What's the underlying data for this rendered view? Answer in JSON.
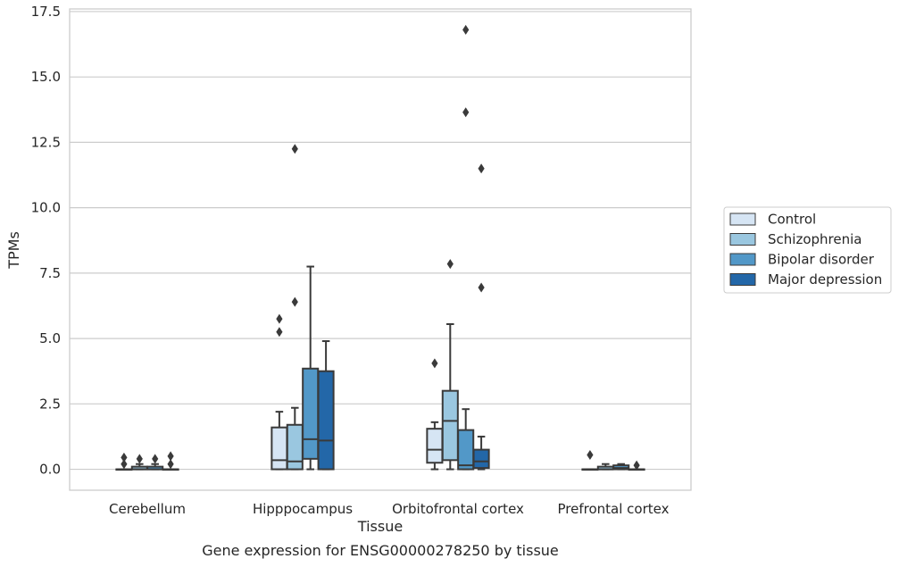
{
  "chart_data": {
    "type": "box",
    "title": "",
    "caption": "Gene expression for ENSG00000278250 by tissue",
    "xlabel": "Tissue",
    "ylabel": "TPMs",
    "ylim": [
      -0.8,
      17.6
    ],
    "yticks": [
      "0.0",
      "2.5",
      "5.0",
      "7.5",
      "10.0",
      "12.5",
      "15.0",
      "17.5"
    ],
    "grid": "horizontal",
    "legend_position": "right",
    "categories": [
      "Cerebellum",
      "Hipppocampus",
      "Orbitofrontal cortex",
      "Prefrontal cortex"
    ],
    "series": [
      {
        "name": "Control",
        "color": "#d6e5f4",
        "boxes": [
          {
            "whislo": 0,
            "q1": 0,
            "med": 0,
            "q3": 0,
            "whishi": 0,
            "fliers": [
              0.2,
              0.45
            ]
          },
          {
            "whislo": 0,
            "q1": 0,
            "med": 0.35,
            "q3": 1.6,
            "whishi": 2.2,
            "fliers": [
              5.25,
              5.75
            ]
          },
          {
            "whislo": 0,
            "q1": 0.25,
            "med": 0.75,
            "q3": 1.55,
            "whishi": 1.8,
            "fliers": [
              4.05
            ]
          },
          {
            "whislo": 0,
            "q1": 0,
            "med": 0,
            "q3": 0,
            "whishi": 0,
            "fliers": [
              0.55
            ]
          }
        ]
      },
      {
        "name": "Schizophrenia",
        "color": "#9ac7e0",
        "boxes": [
          {
            "whislo": 0,
            "q1": 0,
            "med": 0,
            "q3": 0.1,
            "whishi": 0.2,
            "fliers": [
              0.4
            ]
          },
          {
            "whislo": 0,
            "q1": 0,
            "med": 0.3,
            "q3": 1.7,
            "whishi": 2.35,
            "fliers": [
              6.4,
              12.25
            ]
          },
          {
            "whislo": 0,
            "q1": 0.35,
            "med": 1.85,
            "q3": 3.0,
            "whishi": 5.55,
            "fliers": [
              7.85
            ]
          },
          {
            "whislo": 0,
            "q1": 0,
            "med": 0,
            "q3": 0.1,
            "whishi": 0.2,
            "fliers": []
          }
        ]
      },
      {
        "name": "Bipolar disorder",
        "color": "#5298c8",
        "boxes": [
          {
            "whislo": 0,
            "q1": 0,
            "med": 0,
            "q3": 0.1,
            "whishi": 0.2,
            "fliers": [
              0.4
            ]
          },
          {
            "whislo": 0,
            "q1": 0.4,
            "med": 1.15,
            "q3": 3.85,
            "whishi": 7.75,
            "fliers": []
          },
          {
            "whislo": 0,
            "q1": 0,
            "med": 0.15,
            "q3": 1.5,
            "whishi": 2.3,
            "fliers": [
              13.65,
              16.8
            ]
          },
          {
            "whislo": 0,
            "q1": 0,
            "med": 0.05,
            "q3": 0.15,
            "whishi": 0.2,
            "fliers": []
          }
        ]
      },
      {
        "name": "Major depression",
        "color": "#2367a8",
        "boxes": [
          {
            "whislo": 0,
            "q1": 0,
            "med": 0,
            "q3": 0,
            "whishi": 0,
            "fliers": [
              0.2,
              0.5
            ]
          },
          {
            "whislo": 0,
            "q1": 0,
            "med": 1.1,
            "q3": 3.75,
            "whishi": 4.9,
            "fliers": []
          },
          {
            "whislo": 0,
            "q1": 0.05,
            "med": 0.3,
            "q3": 0.75,
            "whishi": 1.25,
            "fliers": [
              6.95,
              11.5
            ]
          },
          {
            "whislo": 0,
            "q1": 0,
            "med": 0,
            "q3": 0,
            "whishi": 0,
            "fliers": [
              0.15
            ]
          }
        ]
      }
    ]
  }
}
